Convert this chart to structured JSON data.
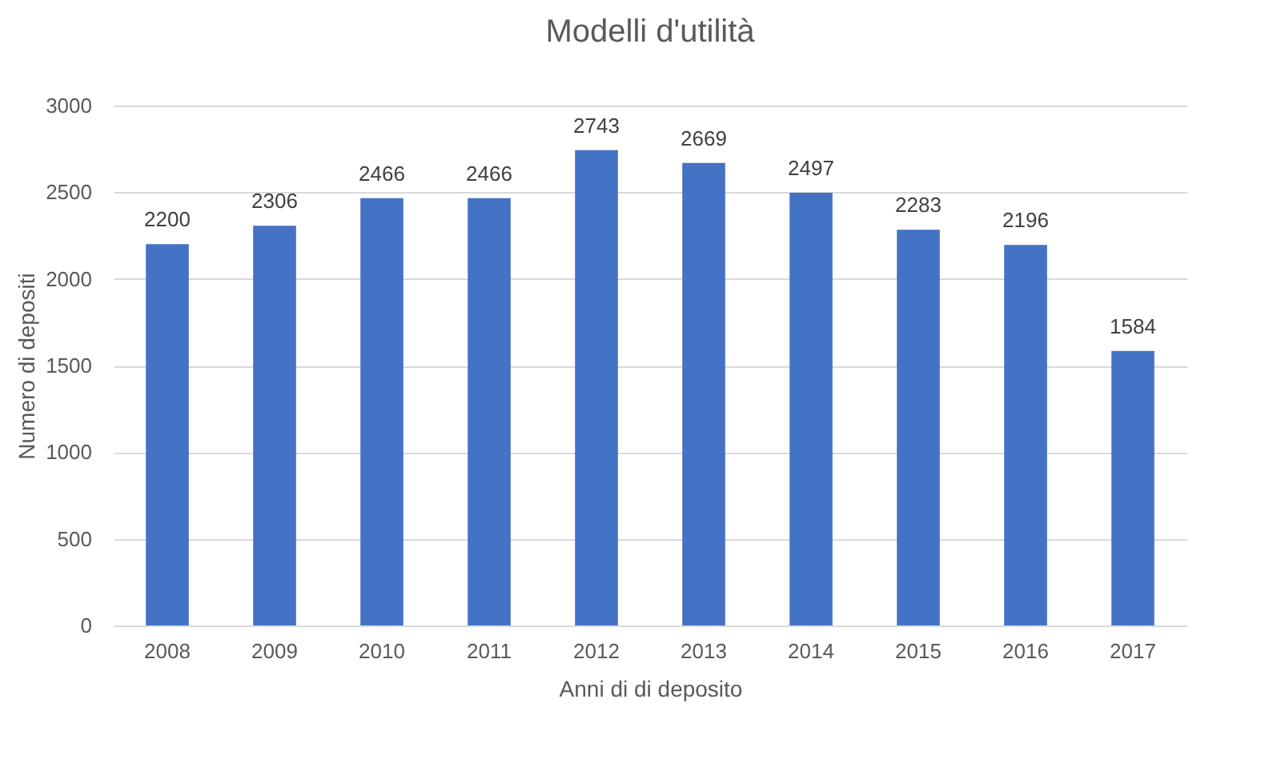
{
  "chart_data": {
    "type": "bar",
    "title": "Modelli d'utilità",
    "xlabel": "Anni di di deposito",
    "ylabel": "Numero di depositi",
    "categories": [
      "2008",
      "2009",
      "2010",
      "2011",
      "2012",
      "2013",
      "2014",
      "2015",
      "2016",
      "2017"
    ],
    "values": [
      2200,
      2306,
      2466,
      2466,
      2743,
      2669,
      2497,
      2283,
      2196,
      1584
    ],
    "color": "#4472c4",
    "ylim": [
      0,
      3000
    ],
    "yticks": [
      0,
      500,
      1000,
      1500,
      2000,
      2500,
      3000
    ],
    "grid": "y",
    "data_labels": true
  }
}
